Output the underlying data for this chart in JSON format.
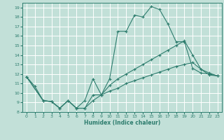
{
  "xlabel": "Humidex (Indice chaleur)",
  "bg_color": "#c2e0d8",
  "grid_color": "#ffffff",
  "line_color": "#2e7d6e",
  "xlim": [
    -0.5,
    23.5
  ],
  "ylim": [
    8,
    19.5
  ],
  "xticks": [
    0,
    1,
    2,
    3,
    4,
    5,
    6,
    7,
    8,
    9,
    10,
    11,
    12,
    13,
    14,
    15,
    16,
    17,
    18,
    19,
    20,
    21,
    22,
    23
  ],
  "yticks": [
    8,
    9,
    10,
    11,
    12,
    13,
    14,
    15,
    16,
    17,
    18,
    19
  ],
  "line1_x": [
    0,
    1,
    2,
    3,
    4,
    5,
    6,
    7,
    8,
    9,
    10,
    11,
    12,
    13,
    14,
    15,
    16,
    17,
    18,
    19,
    20,
    21,
    22,
    23
  ],
  "line1_y": [
    11.7,
    10.7,
    9.2,
    9.1,
    8.4,
    9.2,
    8.4,
    9.2,
    11.5,
    9.8,
    11.5,
    16.5,
    16.5,
    18.2,
    18.0,
    19.1,
    18.8,
    17.3,
    15.4,
    15.4,
    12.6,
    12.1,
    12.0,
    11.8
  ],
  "line2_x": [
    0,
    2,
    3,
    4,
    5,
    6,
    7,
    8,
    9,
    10,
    11,
    12,
    13,
    14,
    15,
    16,
    17,
    18,
    19,
    20,
    21,
    22,
    23
  ],
  "line2_y": [
    11.7,
    9.2,
    9.1,
    8.4,
    9.2,
    8.4,
    8.4,
    9.8,
    9.8,
    10.8,
    11.5,
    12.0,
    12.5,
    13.0,
    13.5,
    14.0,
    14.5,
    15.0,
    15.5,
    14.0,
    12.5,
    12.1,
    11.8
  ],
  "line3_x": [
    0,
    2,
    3,
    4,
    5,
    6,
    7,
    8,
    9,
    10,
    11,
    12,
    13,
    14,
    15,
    16,
    17,
    18,
    19,
    20,
    21,
    22,
    23
  ],
  "line3_y": [
    11.7,
    9.2,
    9.1,
    8.4,
    9.2,
    8.4,
    8.4,
    9.2,
    9.8,
    10.2,
    10.5,
    11.0,
    11.3,
    11.6,
    11.9,
    12.2,
    12.5,
    12.8,
    13.0,
    13.2,
    12.5,
    11.9,
    11.8
  ]
}
